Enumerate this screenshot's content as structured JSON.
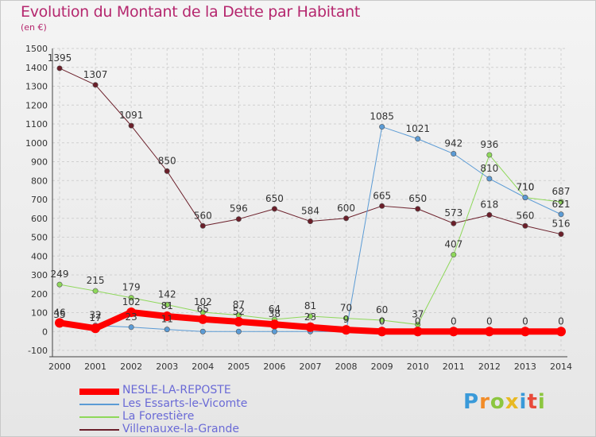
{
  "title": "Evolution du Montant de la Dette par Habitant",
  "subtitle": "(en €)",
  "logo_text": "Proxiti",
  "chart_data": {
    "type": "line",
    "x": [
      "2000",
      "2001",
      "2002",
      "2003",
      "2004",
      "2005",
      "2006",
      "2007",
      "2008",
      "2009",
      "2010",
      "2011",
      "2012",
      "2013",
      "2014"
    ],
    "ylim": [
      -100,
      1500
    ],
    "yticks": [
      -100,
      0,
      100,
      200,
      300,
      400,
      500,
      600,
      700,
      800,
      900,
      1000,
      1100,
      1200,
      1300,
      1400,
      1500
    ],
    "grid": true,
    "legend_position": "bottom-left",
    "series": [
      {
        "name": "NESLE-LA-REPOSTE",
        "color": "#ff0000",
        "width": 8,
        "values": [
          46,
          17,
          102,
          81,
          65,
          52,
          38,
          23,
          9,
          0,
          0,
          0,
          0,
          0,
          0
        ],
        "labels": [
          "46",
          "17",
          "102",
          "81",
          "65",
          "52",
          "38",
          "23",
          "9",
          "0",
          "0",
          "0",
          "0",
          "0",
          "0"
        ]
      },
      {
        "name": "Les Essarts-le-Vicomte",
        "color": "#5b9bd5",
        "width": 1,
        "values": [
          35,
          32,
          23,
          11,
          0,
          0,
          0,
          0,
          0,
          1085,
          1021,
          942,
          810,
          710,
          621
        ],
        "labels": [
          "35",
          "32",
          "23",
          "11",
          "",
          "",
          "",
          "",
          "",
          "1085",
          "1021",
          "942",
          "810",
          "710",
          "621"
        ]
      },
      {
        "name": "La Forestière",
        "color": "#8ed85a",
        "width": 1,
        "values": [
          249,
          215,
          179,
          142,
          102,
          87,
          64,
          81,
          70,
          60,
          37,
          407,
          936,
          710,
          687
        ],
        "labels": [
          "249",
          "215",
          "179",
          "142",
          "102",
          "87",
          "64",
          "81",
          "70",
          "60",
          "37",
          "407",
          "936",
          "710",
          "687"
        ]
      },
      {
        "name": "Villenauxe-la-Grande",
        "color": "#6b1f2a",
        "width": 1,
        "values": [
          1395,
          1307,
          1091,
          850,
          560,
          596,
          650,
          584,
          600,
          665,
          650,
          573,
          618,
          560,
          516
        ],
        "labels": [
          "1395",
          "1307",
          "1091",
          "850",
          "560",
          "596",
          "650",
          "584",
          "600",
          "665",
          "650",
          "573",
          "618",
          "560",
          "516"
        ]
      }
    ]
  }
}
